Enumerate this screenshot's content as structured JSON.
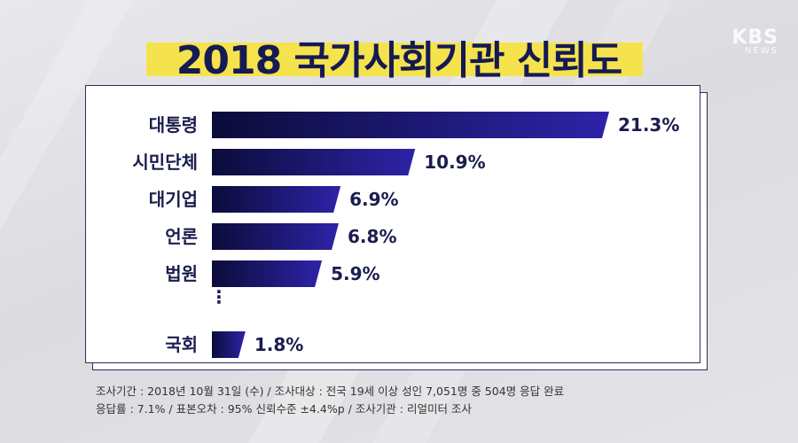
{
  "title": "2018 국가사회기관 신뢰도",
  "watermark": {
    "logo": "KBS",
    "sub": "NEWS"
  },
  "chart_data": {
    "type": "bar",
    "orientation": "horizontal",
    "categories": [
      "대통령",
      "시민단체",
      "대기업",
      "언론",
      "법원",
      "국회"
    ],
    "values": [
      21.3,
      10.9,
      6.9,
      6.8,
      5.9,
      1.8
    ],
    "value_labels": [
      "21.3%",
      "10.9%",
      "6.9%",
      "6.8%",
      "5.9%",
      "1.8%"
    ],
    "unit": "%",
    "gap_after_index": 4,
    "gap_marker": "⋮",
    "colors": {
      "bar_start": "#0b0c3a",
      "bar_end": "#2e23a8",
      "label": "#1a1d4e"
    },
    "grid": false,
    "legend": "none"
  },
  "footnote": {
    "line1": "조사기간 : 2018년 10월 31일 (수) / 조사대상 : 전국 19세 이상 성인 7,051명 중 504명 응답 완료",
    "line2": "응답률 : 7.1% / 표본오차 : 95% 신뢰수준 ±4.4%p / 조사기관 : 리얼미터 조사"
  }
}
